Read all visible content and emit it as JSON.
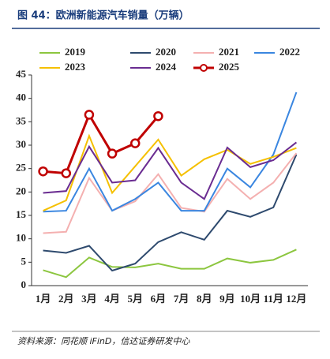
{
  "title": "图 44：欧洲新能源汽车销量（万辆）",
  "source": "资料来源：同花顺 iFinD，信达证券研发中心",
  "chart_data": {
    "type": "line",
    "categories": [
      "1月",
      "2月",
      "3月",
      "4月",
      "5月",
      "6月",
      "7月",
      "8月",
      "9月",
      "10月",
      "11月",
      "12月"
    ],
    "series": [
      {
        "name": "2019",
        "color": "#8cc63f",
        "values": [
          3.3,
          1.8,
          6.0,
          4.0,
          3.9,
          4.7,
          3.6,
          3.6,
          5.8,
          4.9,
          5.5,
          7.7
        ]
      },
      {
        "name": "2020",
        "color": "#2e4a6e",
        "values": [
          7.5,
          7.0,
          8.5,
          3.2,
          4.7,
          9.3,
          11.4,
          9.8,
          16.0,
          14.7,
          16.7,
          28.0
        ]
      },
      {
        "name": "2021",
        "color": "#f4b0b0",
        "values": [
          11.2,
          11.5,
          23.0,
          16.0,
          18.0,
          23.8,
          16.6,
          15.8,
          22.8,
          18.5,
          22.0,
          28.3
        ]
      },
      {
        "name": "2022",
        "color": "#3a86e0",
        "values": [
          15.8,
          16.0,
          25.0,
          16.0,
          18.5,
          22.0,
          16.0,
          16.0,
          25.0,
          21.0,
          28.0,
          41.3
        ]
      },
      {
        "name": "2023",
        "color": "#f5c000",
        "values": [
          16.0,
          18.2,
          32.0,
          19.8,
          25.5,
          31.2,
          23.5,
          27.0,
          29.0,
          26.0,
          27.5,
          29.4
        ]
      },
      {
        "name": "2024",
        "color": "#6a2c91",
        "values": [
          19.8,
          20.2,
          29.7,
          22.0,
          22.5,
          29.4,
          22.0,
          18.5,
          29.5,
          25.3,
          26.8,
          30.6
        ]
      },
      {
        "name": "2025",
        "color": "#c00000",
        "values": [
          24.4,
          24.0,
          36.5,
          28.2,
          30.4,
          36.2,
          null,
          null,
          null,
          null,
          null,
          null
        ],
        "markers": true
      }
    ],
    "ylim": [
      0,
      45
    ],
    "yticks": [
      0,
      5,
      10,
      15,
      20,
      25,
      30,
      35,
      40,
      45
    ]
  }
}
